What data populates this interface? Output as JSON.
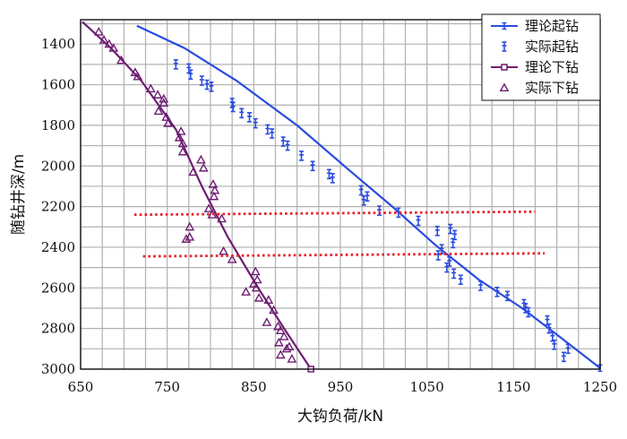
{
  "chart_data": {
    "type": "line",
    "title": "",
    "xlabel": "大钩负荷/kN",
    "ylabel": "随钻井深/m",
    "xlim": [
      650,
      1250
    ],
    "ylim": [
      3000,
      1280
    ],
    "y_inverted": true,
    "xticks": [
      "650",
      "750",
      "850",
      "950",
      "1050",
      "1150",
      "1250"
    ],
    "yticks": [
      "1400",
      "1600",
      "1800",
      "2000",
      "2200",
      "2400",
      "2600",
      "2800",
      "3000"
    ],
    "grid": true,
    "legend_position": "top-right",
    "colors": {
      "blue": "#2a4be0",
      "purple": "#6e1e72",
      "red": "#e8202a",
      "grid": "#b0b0b0"
    },
    "series": [
      {
        "name": "理论起钻",
        "kind": "line",
        "color": "#2a4be0",
        "marker": "tick",
        "points": [
          [
            715,
            1310
          ],
          [
            770,
            1420
          ],
          [
            830,
            1580
          ],
          [
            900,
            1800
          ],
          [
            960,
            2020
          ],
          [
            1010,
            2200
          ],
          [
            1060,
            2390
          ],
          [
            1110,
            2560
          ],
          [
            1160,
            2700
          ],
          [
            1200,
            2830
          ],
          [
            1250,
            2995
          ]
        ]
      },
      {
        "name": "实际起钻",
        "kind": "scatter",
        "color": "#2a4be0",
        "marker": "double-tick",
        "points": [
          [
            760,
            1500
          ],
          [
            775,
            1520
          ],
          [
            777,
            1550
          ],
          [
            790,
            1580
          ],
          [
            796,
            1600
          ],
          [
            801,
            1610
          ],
          [
            825,
            1690
          ],
          [
            826,
            1710
          ],
          [
            836,
            1740
          ],
          [
            845,
            1760
          ],
          [
            852,
            1790
          ],
          [
            866,
            1820
          ],
          [
            871,
            1840
          ],
          [
            884,
            1880
          ],
          [
            889,
            1900
          ],
          [
            905,
            1950
          ],
          [
            918,
            2000
          ],
          [
            937,
            2040
          ],
          [
            941,
            2060
          ],
          [
            974,
            2120
          ],
          [
            981,
            2150
          ],
          [
            977,
            2170
          ],
          [
            995,
            2220
          ],
          [
            1017,
            2230
          ],
          [
            1040,
            2270
          ],
          [
            1062,
            2320
          ],
          [
            1077,
            2310
          ],
          [
            1082,
            2340
          ],
          [
            1080,
            2380
          ],
          [
            1067,
            2410
          ],
          [
            1063,
            2440
          ],
          [
            1076,
            2470
          ],
          [
            1073,
            2500
          ],
          [
            1081,
            2530
          ],
          [
            1089,
            2560
          ],
          [
            1112,
            2590
          ],
          [
            1131,
            2620
          ],
          [
            1143,
            2640
          ],
          [
            1162,
            2680
          ],
          [
            1164,
            2700
          ],
          [
            1167,
            2720
          ],
          [
            1189,
            2760
          ],
          [
            1191,
            2800
          ],
          [
            1195,
            2840
          ],
          [
            1197,
            2880
          ],
          [
            1213,
            2900
          ],
          [
            1208,
            2940
          ]
        ]
      },
      {
        "name": "理论下钻",
        "kind": "line",
        "color": "#6e1e72",
        "marker": "square",
        "points": [
          [
            652,
            1290
          ],
          [
            685,
            1420
          ],
          [
            720,
            1580
          ],
          [
            760,
            1820
          ],
          [
            790,
            2100
          ],
          [
            820,
            2350
          ],
          [
            855,
            2600
          ],
          [
            885,
            2800
          ],
          [
            916,
            3000
          ]
        ]
      },
      {
        "name": "实际下钻",
        "kind": "scatter",
        "color": "#6e1e72",
        "marker": "triangle",
        "points": [
          [
            671,
            1340
          ],
          [
            677,
            1380
          ],
          [
            683,
            1400
          ],
          [
            688,
            1420
          ],
          [
            697,
            1480
          ],
          [
            713,
            1540
          ],
          [
            716,
            1560
          ],
          [
            731,
            1620
          ],
          [
            739,
            1650
          ],
          [
            746,
            1670
          ],
          [
            746,
            1690
          ],
          [
            740,
            1730
          ],
          [
            749,
            1760
          ],
          [
            751,
            1790
          ],
          [
            766,
            1830
          ],
          [
            764,
            1860
          ],
          [
            768,
            1890
          ],
          [
            768,
            1930
          ],
          [
            780,
            2030
          ],
          [
            792,
            2010
          ],
          [
            789,
            1970
          ],
          [
            803,
            2090
          ],
          [
            805,
            2120
          ],
          [
            804,
            2150
          ],
          [
            798,
            2210
          ],
          [
            802,
            2240
          ],
          [
            813,
            2260
          ],
          [
            776,
            2300
          ],
          [
            772,
            2360
          ],
          [
            776,
            2350
          ],
          [
            815,
            2420
          ],
          [
            825,
            2460
          ],
          [
            852,
            2520
          ],
          [
            854,
            2560
          ],
          [
            850,
            2580
          ],
          [
            853,
            2600
          ],
          [
            841,
            2620
          ],
          [
            856,
            2650
          ],
          [
            867,
            2660
          ],
          [
            873,
            2710
          ],
          [
            865,
            2770
          ],
          [
            878,
            2790
          ],
          [
            881,
            2810
          ],
          [
            885,
            2840
          ],
          [
            879,
            2870
          ],
          [
            891,
            2890
          ],
          [
            888,
            2900
          ],
          [
            881,
            2930
          ],
          [
            894,
            2950
          ]
        ]
      },
      {
        "name": "",
        "kind": "dotted-line",
        "color": "#e8202a",
        "points": [
          [
            712,
            2240
          ],
          [
            1175,
            2225
          ]
        ]
      },
      {
        "name": "",
        "kind": "dotted-line",
        "color": "#e8202a",
        "points": [
          [
            722,
            2445
          ],
          [
            1186,
            2430
          ]
        ]
      }
    ]
  }
}
